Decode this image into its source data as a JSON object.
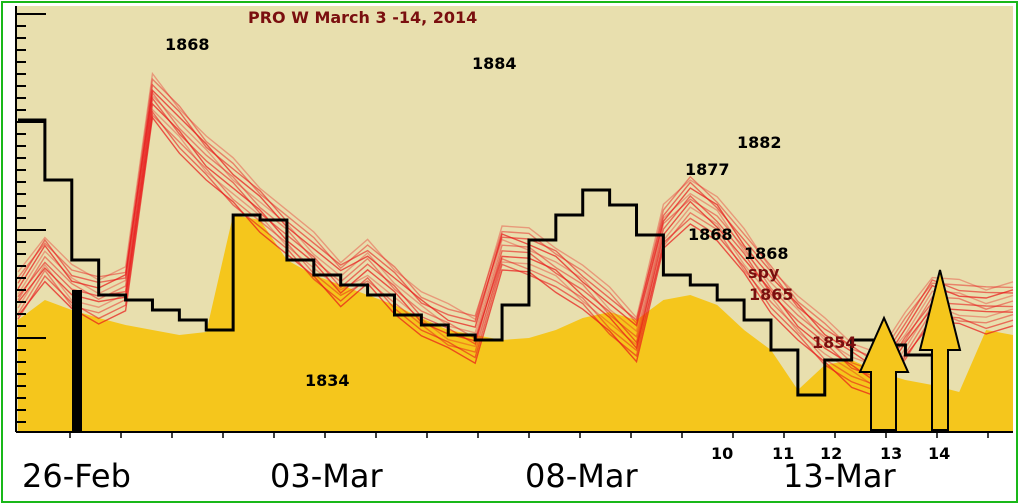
{
  "chart_data": {
    "type": "line",
    "title": "PRO W March 3 -14, 2014",
    "x_ticks": [
      "26-Feb",
      "03-Mar",
      "08-Mar",
      "13-Mar"
    ],
    "day_labels": [
      "10",
      "11",
      "12",
      "13",
      "14"
    ],
    "year_labels": [
      {
        "text": "1868",
        "color": "#000000"
      },
      {
        "text": "1884",
        "color": "#000000"
      },
      {
        "text": "1882",
        "color": "#000000"
      },
      {
        "text": "1877",
        "color": "#000000"
      },
      {
        "text": "1868",
        "color": "#000000"
      },
      {
        "text": "1868",
        "color": "#000000"
      },
      {
        "text": "spy",
        "color": "#7a0f0f"
      },
      {
        "text": "1865",
        "color": "#7a0f0f"
      },
      {
        "text": "1854",
        "color": "#7a0f0f"
      },
      {
        "text": "1834",
        "color": "#000000"
      }
    ],
    "series": [
      {
        "color": "#000000",
        "x": [
          0,
          1,
          2,
          3,
          4,
          5,
          6,
          7,
          8,
          9,
          10,
          11,
          12,
          13,
          14,
          15,
          16,
          17,
          18,
          19,
          20,
          21,
          22,
          23,
          24,
          25,
          26,
          27,
          28,
          29,
          30,
          31,
          32,
          33,
          34,
          35,
          36,
          37
        ],
        "values": [
          120,
          180,
          260,
          295,
          300,
          310,
          320,
          330,
          215,
          220,
          260,
          275,
          285,
          295,
          315,
          325,
          335,
          340,
          305,
          240,
          215,
          190,
          205,
          235,
          275,
          285,
          300,
          320,
          350,
          395,
          360,
          340,
          345,
          355,
          370,
          null,
          null,
          null
        ]
      },
      {
        "color": "#f5c61c",
        "x": [
          0,
          1,
          2,
          3,
          4,
          5,
          6,
          7,
          8,
          9,
          10,
          11,
          12,
          13,
          14,
          15,
          16,
          17,
          18,
          19,
          20,
          21,
          22,
          23,
          24,
          25,
          26,
          27,
          28,
          29,
          30,
          31,
          32,
          33,
          34,
          35,
          36,
          37
        ],
        "values": [
          320,
          300,
          310,
          318,
          325,
          330,
          335,
          332,
          215,
          220,
          260,
          275,
          285,
          295,
          305,
          318,
          330,
          335,
          340,
          338,
          330,
          318,
          312,
          320,
          300,
          295,
          305,
          330,
          350,
          390,
          365,
          360,
          372,
          380,
          385,
          392,
          330,
          335
        ]
      },
      {
        "color": "#e8181a",
        "x": [
          0,
          1,
          2,
          3,
          4,
          5,
          6,
          7,
          8,
          9,
          10,
          11,
          12,
          13,
          14,
          15,
          16,
          17,
          18,
          19,
          20,
          21,
          22,
          23,
          24,
          25,
          26,
          27,
          28,
          29,
          30,
          31,
          32,
          33,
          34,
          35,
          36,
          37
        ],
        "values": [
          300,
          260,
          290,
          300,
          290,
          100,
          130,
          160,
          185,
          210,
          235,
          260,
          285,
          265,
          290,
          315,
          330,
          340,
          250,
          255,
          270,
          290,
          315,
          340,
          230,
          200,
          220,
          255,
          290,
          320,
          345,
          365,
          378,
          340,
          300,
          305,
          310,
          305
        ]
      }
    ]
  }
}
